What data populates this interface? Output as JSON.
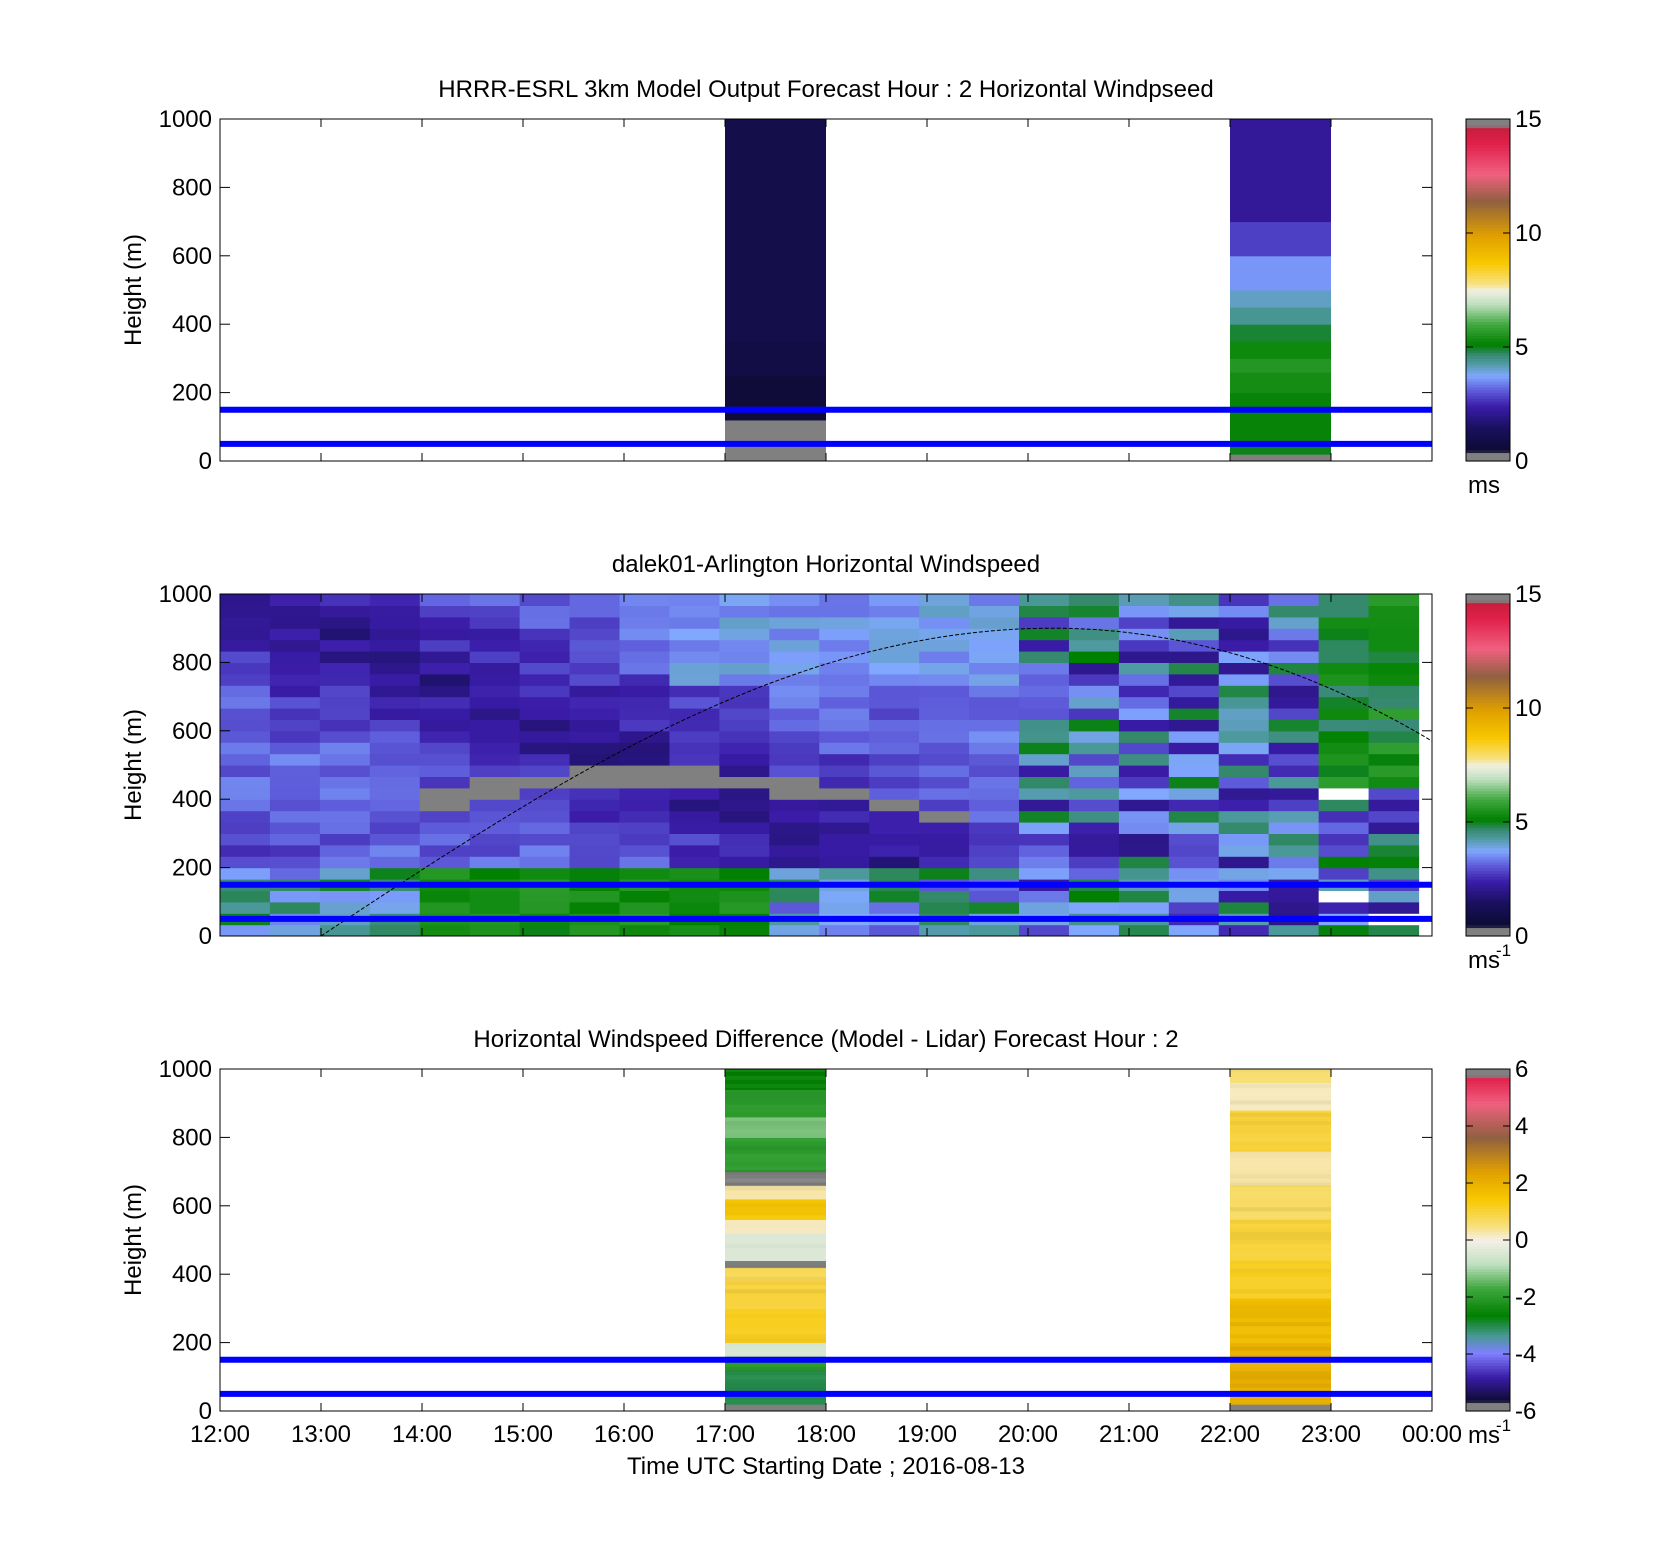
{
  "figure": {
    "background": "#ffffff"
  },
  "chart_data": [
    {
      "type": "heatmap",
      "title": "HRRR-ESRL 3km Model Output   Forecast Hour : 2 Horizontal Windpseed",
      "xlabel": "",
      "ylabel": "Height (m)",
      "xlim": [
        "12:00",
        "00:00"
      ],
      "ylim": [
        0,
        1000
      ],
      "yticks": [
        0,
        200,
        400,
        600,
        800,
        1000
      ],
      "xticks": [
        "12:00",
        "13:00",
        "14:00",
        "15:00",
        "16:00",
        "17:00",
        "18:00",
        "19:00",
        "20:00",
        "21:00",
        "22:00",
        "23:00",
        "00:00"
      ],
      "show_xticklabels": false,
      "colorbar": {
        "min": 0,
        "max": 15,
        "ticks": [
          0,
          5,
          10,
          15
        ],
        "label": "ms",
        "exponent": ""
      },
      "reference_lines_m": [
        50,
        150
      ],
      "columns": [
        {
          "start": "17:00",
          "end": "18:00",
          "bins": [
            {
              "y0": 0,
              "y1": 20,
              "v": -1
            },
            {
              "y0": 20,
              "y1": 40,
              "v": 0.1
            },
            {
              "y0": 40,
              "y1": 100,
              "v": 0.1
            },
            {
              "y0": 100,
              "y1": 120,
              "v": 0.1
            },
            {
              "y0": 120,
              "y1": 250,
              "v": 0.6
            },
            {
              "y0": 250,
              "y1": 350,
              "v": 0.9
            },
            {
              "y0": 350,
              "y1": 1000,
              "v": 1.0
            }
          ]
        },
        {
          "start": "22:00",
          "end": "23:00",
          "bins": [
            {
              "y0": 0,
              "y1": 20,
              "v": -1
            },
            {
              "y0": 20,
              "y1": 40,
              "v": 5.0
            },
            {
              "y0": 40,
              "y1": 200,
              "v": 5.2
            },
            {
              "y0": 200,
              "y1": 260,
              "v": 5.4
            },
            {
              "y0": 260,
              "y1": 300,
              "v": 5.6
            },
            {
              "y0": 300,
              "y1": 350,
              "v": 5.3
            },
            {
              "y0": 350,
              "y1": 400,
              "v": 4.9
            },
            {
              "y0": 400,
              "y1": 450,
              "v": 4.4
            },
            {
              "y0": 450,
              "y1": 500,
              "v": 4.1
            },
            {
              "y0": 500,
              "y1": 600,
              "v": 3.6
            },
            {
              "y0": 600,
              "y1": 700,
              "v": 2.8
            },
            {
              "y0": 700,
              "y1": 1000,
              "v": 2.2
            }
          ]
        }
      ]
    },
    {
      "type": "heatmap",
      "title": "dalek01-Arlington  Horizontal Windspeed",
      "xlabel": "",
      "ylabel": "Height (m)",
      "xlim": [
        "12:00",
        "00:00"
      ],
      "ylim": [
        0,
        1000
      ],
      "yticks": [
        0,
        200,
        400,
        600,
        800,
        1000
      ],
      "xticks": [
        "12:00",
        "13:00",
        "14:00",
        "15:00",
        "16:00",
        "17:00",
        "18:00",
        "19:00",
        "20:00",
        "21:00",
        "22:00",
        "23:00",
        "00:00"
      ],
      "show_xticklabels": false,
      "colorbar": {
        "min": 0,
        "max": 15,
        "ticks": [
          0,
          5,
          10,
          15
        ],
        "label": "ms",
        "exponent": "-1"
      },
      "reference_lines_m": [
        50,
        150
      ],
      "boundary_layer_curve": {
        "start": "13:00",
        "peak": "20:15",
        "peak_height": 900,
        "end": "00:00",
        "end_height": 570
      },
      "time_bins": 24,
      "height_bins": 30,
      "last_data_time": "23:52"
    },
    {
      "type": "heatmap",
      "title": "Horizontal Windspeed Difference (Model - Lidar) Forecast Hour : 2",
      "xlabel": "Time UTC  Starting Date ; 2016-08-13",
      "ylabel": "Height (m)",
      "xlim": [
        "12:00",
        "00:00"
      ],
      "ylim": [
        0,
        1000
      ],
      "yticks": [
        0,
        200,
        400,
        600,
        800,
        1000
      ],
      "xticks": [
        "12:00",
        "13:00",
        "14:00",
        "15:00",
        "16:00",
        "17:00",
        "18:00",
        "19:00",
        "20:00",
        "21:00",
        "22:00",
        "23:00",
        "00:00"
      ],
      "show_xticklabels": true,
      "colorbar": {
        "min": -6,
        "max": 6,
        "ticks": [
          -6,
          -4,
          -2,
          0,
          2,
          4,
          6
        ],
        "label": "ms",
        "exponent": "-1"
      },
      "reference_lines_m": [
        50,
        150
      ],
      "columns": [
        {
          "start": "17:00",
          "end": "18:00",
          "bins": [
            {
              "y0": 0,
              "y1": 20,
              "v": -99
            },
            {
              "y0": 20,
              "y1": 120,
              "v": -3.0
            },
            {
              "y0": 120,
              "y1": 160,
              "v": -2.0
            },
            {
              "y0": 160,
              "y1": 200,
              "v": -0.5
            },
            {
              "y0": 200,
              "y1": 300,
              "v": 1.2
            },
            {
              "y0": 300,
              "y1": 380,
              "v": 1.0
            },
            {
              "y0": 380,
              "y1": 420,
              "v": 0.8
            },
            {
              "y0": 420,
              "y1": 440,
              "v": -6.5
            },
            {
              "y0": 440,
              "y1": 520,
              "v": -0.4
            },
            {
              "y0": 520,
              "y1": 560,
              "v": 0.2
            },
            {
              "y0": 560,
              "y1": 620,
              "v": 1.4
            },
            {
              "y0": 620,
              "y1": 660,
              "v": 0.3
            },
            {
              "y0": 660,
              "y1": 700,
              "v": -1.0
            },
            {
              "y0": 700,
              "y1": 800,
              "v": -2.0
            },
            {
              "y0": 800,
              "y1": 860,
              "v": -1.3
            },
            {
              "y0": 860,
              "y1": 940,
              "v": -2.0
            },
            {
              "y0": 940,
              "y1": 1000,
              "v": -2.6
            }
          ]
        },
        {
          "start": "22:00",
          "end": "23:00",
          "bins": [
            {
              "y0": 0,
              "y1": 20,
              "v": -99
            },
            {
              "y0": 20,
              "y1": 200,
              "v": 2.0
            },
            {
              "y0": 200,
              "y1": 330,
              "v": 1.7
            },
            {
              "y0": 330,
              "y1": 440,
              "v": 1.2
            },
            {
              "y0": 440,
              "y1": 560,
              "v": 1.0
            },
            {
              "y0": 560,
              "y1": 660,
              "v": 0.7
            },
            {
              "y0": 660,
              "y1": 760,
              "v": 0.3
            },
            {
              "y0": 760,
              "y1": 880,
              "v": 1.0
            },
            {
              "y0": 880,
              "y1": 960,
              "v": 0.2
            },
            {
              "y0": 960,
              "y1": 1000,
              "v": 0.6
            }
          ]
        }
      ]
    }
  ]
}
